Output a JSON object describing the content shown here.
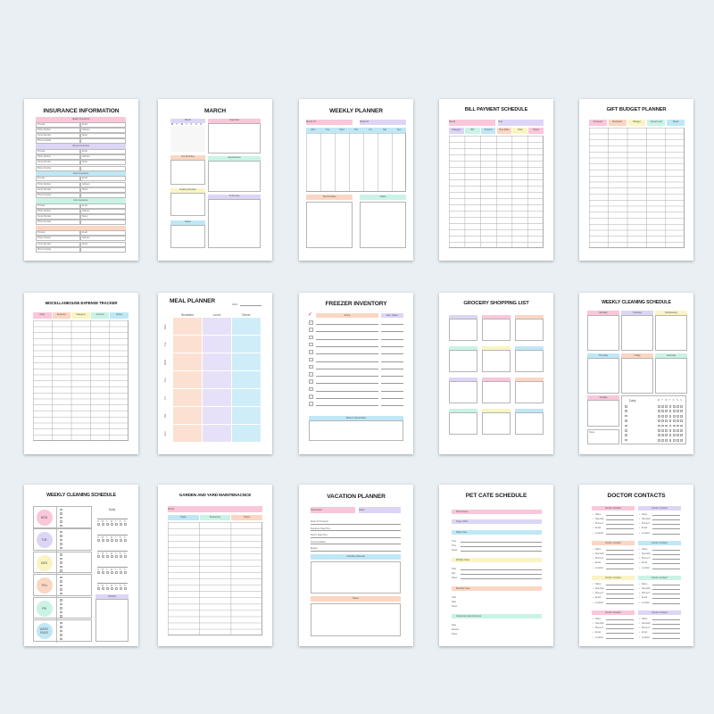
{
  "colors": {
    "pink": "#f9c6da",
    "lavender": "#ddd5f6",
    "blue": "#bfe7f6",
    "peach": "#fbd6c2",
    "mint": "#c9f3e6",
    "yellow": "#f9f4c2",
    "background": "#e9eff2"
  },
  "cards": [
    {
      "id": "insurance",
      "title": "INSURANCE INFORMATION",
      "sections": [
        {
          "label": "Health Insurance",
          "color": "pink"
        },
        {
          "label": "Home Insurance",
          "color": "lavender"
        },
        {
          "label": "Auto Insurance",
          "color": "blue"
        },
        {
          "label": "Life Insurance",
          "color": "mint"
        },
        {
          "label": "",
          "color": "peach"
        }
      ],
      "fields_left": [
        "Provider",
        "Policy Number",
        "Group Number",
        "Phone Number"
      ],
      "fields_right": [
        "Email",
        "Address",
        "Notes",
        ""
      ]
    },
    {
      "id": "march",
      "title": "MARCH",
      "calendar_label": "March",
      "weekdays": [
        "M",
        "T",
        "W",
        "T",
        "F",
        "S",
        "S"
      ],
      "boxes": [
        {
          "label": "Top Priorities",
          "color": "peach"
        },
        {
          "label": "Goals and plans",
          "color": "yellow"
        },
        {
          "label": "Notes",
          "color": "blue"
        },
        {
          "label": "Important",
          "color": "pink"
        },
        {
          "label": "Appointment",
          "color": "mint"
        },
        {
          "label": "To Do List",
          "color": "lavender"
        }
      ]
    },
    {
      "id": "weekly-planner",
      "title": "WEEKLY PLANNER",
      "month_of": "Month Of",
      "week_of": "Week Of",
      "days": [
        "Mon",
        "Tue",
        "Wed",
        "Thu",
        "Fri",
        "Sat",
        "Sun"
      ],
      "top_priorities": "Top Priorities",
      "notes": "Notes"
    },
    {
      "id": "bill-payment",
      "title": "BILL PAYMENT SCHEDULE",
      "month": "Month",
      "year": "Year",
      "columns": [
        {
          "label": "Category",
          "color": "lavender"
        },
        {
          "label": "Bill",
          "color": "mint"
        },
        {
          "label": "Amount",
          "color": "blue"
        },
        {
          "label": "Due Date",
          "color": "peach"
        },
        {
          "label": "Paid",
          "color": "yellow"
        },
        {
          "label": "Notes",
          "color": "pink"
        }
      ]
    },
    {
      "id": "gift-budget",
      "title": "GIFT BUDGET PLANNER",
      "columns": [
        {
          "label": "Occasion",
          "color": "pink"
        },
        {
          "label": "Recipient",
          "color": "peach"
        },
        {
          "label": "Budget",
          "color": "yellow"
        },
        {
          "label": "Actual Cost",
          "color": "mint"
        },
        {
          "label": "Notes",
          "color": "blue"
        }
      ]
    },
    {
      "id": "misc-expense",
      "title": "MISCELLANEOUSE EXPENSE TRACKER",
      "columns": [
        {
          "label": "Date",
          "color": "pink"
        },
        {
          "label": "Expense",
          "color": "peach"
        },
        {
          "label": "Category",
          "color": "yellow"
        },
        {
          "label": "Amount",
          "color": "mint"
        },
        {
          "label": "Notes",
          "color": "blue"
        }
      ]
    },
    {
      "id": "meal-planner",
      "title": "MEAL PLANNER",
      "date_label": "DATE",
      "meals": [
        {
          "label": "Breakfast",
          "color": "peach"
        },
        {
          "label": "Lunch",
          "color": "lavender"
        },
        {
          "label": "Dinner",
          "color": "blue"
        }
      ],
      "days": [
        "Mon",
        "Tue",
        "Wed",
        "Thu",
        "Fri",
        "Sat",
        "Sun"
      ]
    },
    {
      "id": "freezer",
      "title": "FREEZER INVENTORY",
      "items": "Items",
      "exp_dates": "Exp. Dates",
      "notes": "Notes & Reminders",
      "check": "✓"
    },
    {
      "id": "grocery",
      "title": "GROCERY SHOPPING LIST",
      "box_colors": [
        "lavender",
        "pink",
        "peach",
        "mint",
        "yellow",
        "blue",
        "lavender",
        "pink",
        "peach",
        "mint",
        "yellow",
        "blue"
      ]
    },
    {
      "id": "weekly-cleaning-1",
      "title": "WEEKLY CLEANING SCHEDULE",
      "days": [
        {
          "label": "Monday",
          "color": "pink"
        },
        {
          "label": "Tuesday",
          "color": "lavender"
        },
        {
          "label": "Wednesday",
          "color": "yellow"
        },
        {
          "label": "Thursday",
          "color": "blue"
        },
        {
          "label": "Friday",
          "color": "peach"
        },
        {
          "label": "Saturday",
          "color": "mint"
        },
        {
          "label": "Sunday",
          "color": "pink"
        }
      ],
      "daily": "Daily",
      "notes": "Notes",
      "weekdays": [
        "M",
        "T",
        "W",
        "T",
        "F",
        "S",
        "S"
      ]
    },
    {
      "id": "weekly-cleaning-2",
      "title": "WEEKLY CLEANING SCHEDULE",
      "days": [
        {
          "label": "MON",
          "color": "pink"
        },
        {
          "label": "TUE",
          "color": "lavender"
        },
        {
          "label": "WED",
          "color": "yellow"
        },
        {
          "label": "THU",
          "color": "peach"
        },
        {
          "label": "FRI",
          "color": "mint"
        },
        {
          "label": "WEEK ENDS",
          "color": "blue"
        }
      ],
      "daily": "Daily",
      "notes": "NOTES",
      "weekdays": [
        "S",
        "M",
        "T",
        "W",
        "T",
        "F",
        "S"
      ]
    },
    {
      "id": "garden",
      "title": "GARDEN AND YARD MAINTENACNCE",
      "month": "Month",
      "columns": [
        {
          "label": "Tasks",
          "color": "blue"
        },
        {
          "label": "Frequency",
          "color": "mint"
        },
        {
          "label": "Notes",
          "color": "peach"
        }
      ]
    },
    {
      "id": "vacation",
      "title": "VACATION PLANNER",
      "destination": "Destination",
      "dates": "Dates",
      "fields": [
        "Mode Of Transport",
        "Departure Date/Time",
        "Return Date/Time",
        "Accommodation",
        "Budget"
      ],
      "activities": "Activities Planned",
      "notes": "Notes"
    },
    {
      "id": "pet-care",
      "title": "PET CATE SCHEDULE",
      "sections": [
        {
          "label": "Pet's Name",
          "color": "pink",
          "fields": []
        },
        {
          "label": "Type of Pet",
          "color": "lavender",
          "fields": []
        },
        {
          "label": "Daily Care",
          "color": "blue",
          "fields": [
            "Time",
            "Time",
            "Notes"
          ]
        },
        {
          "label": "Weekly Care",
          "color": "yellow",
          "fields": [
            "Task",
            "Day",
            "Notes"
          ]
        },
        {
          "label": "Monthly Care",
          "color": "peach",
          "fields": [
            "Task",
            "Date",
            "Notes"
          ]
        },
        {
          "label": "Veterinary Appointments",
          "color": "mint",
          "fields": [
            "Date",
            "Reason",
            "Notes"
          ]
        }
      ]
    },
    {
      "id": "doctor-contacts",
      "title": "DOCTOR CONTACTS",
      "contact_label": "Doctor Contact",
      "contact_colors": [
        "pink",
        "lavender",
        "peach",
        "blue",
        "yellow",
        "mint",
        "pink",
        "lavender"
      ],
      "fields": [
        "Name",
        "Specialty",
        "Phone #",
        "Email",
        "Location"
      ]
    }
  ]
}
